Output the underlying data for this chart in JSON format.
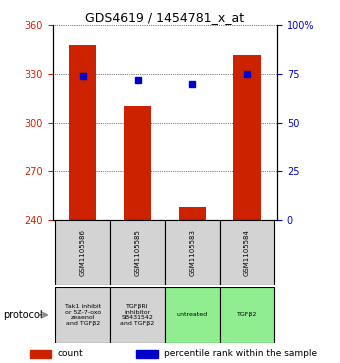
{
  "title": "GDS4619 / 1454781_x_at",
  "samples": [
    "GSM1105586",
    "GSM1105585",
    "GSM1105583",
    "GSM1105584"
  ],
  "counts": [
    348,
    310,
    248,
    342
  ],
  "percentiles": [
    74,
    72,
    70,
    75
  ],
  "protocols": [
    "Tak1 inhibit\nor 5Z-7-oxo\nzeaenol\nand TGFβ2",
    "TGFβRI\ninhibitor\nSB431542\nand TGFβ2",
    "untreated",
    "TGFβ2"
  ],
  "protocol_colors": [
    "#d3d3d3",
    "#d3d3d3",
    "#90ee90",
    "#90ee90"
  ],
  "ymin": 240,
  "ymax": 360,
  "yticks": [
    240,
    270,
    300,
    330,
    360
  ],
  "percentile_ticks": [
    0,
    25,
    50,
    75,
    100
  ],
  "percentile_tick_labels": [
    "0",
    "25",
    "50",
    "75",
    "100%"
  ],
  "bar_color": "#cc2200",
  "dot_color": "#0000cc",
  "bar_width": 0.5,
  "legend_count_label": "count",
  "legend_percentile_label": "percentile rank within the sample",
  "left_axis_color": "#cc2200",
  "right_axis_color": "#0000cc",
  "sample_box_color": "#d3d3d3",
  "title_fontsize": 9,
  "tick_fontsize": 7,
  "sample_fontsize": 5,
  "proto_fontsize": 4.5,
  "legend_fontsize": 6.5
}
